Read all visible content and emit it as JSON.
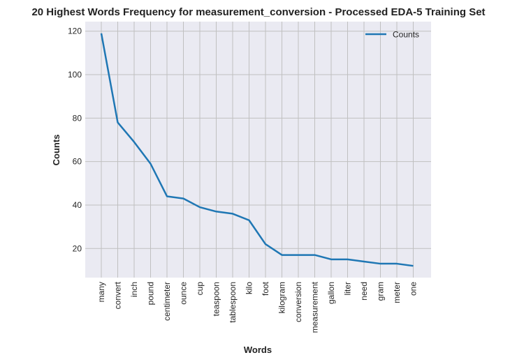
{
  "chart_data": {
    "type": "line",
    "title": "20 Highest Words Frequency for measurement_conversion - Processed EDA-5 Training Set",
    "xlabel": "Words",
    "ylabel": "Counts",
    "categories": [
      "many",
      "convert",
      "inch",
      "pound",
      "centimeter",
      "ounce",
      "cup",
      "teaspoon",
      "tablespoon",
      "kilo",
      "foot",
      "kilogram",
      "conversion",
      "measurement",
      "gallon",
      "liter",
      "need",
      "gram",
      "meter",
      "one"
    ],
    "series": [
      {
        "name": "Counts",
        "values": [
          119,
          78,
          69,
          59,
          44,
          43,
          39,
          37,
          36,
          33,
          22,
          17,
          17,
          17,
          15,
          15,
          14,
          13,
          13,
          12
        ]
      }
    ],
    "ylim": [
      6.6,
      124.4
    ],
    "yticks": [
      20,
      40,
      60,
      80,
      100,
      120
    ],
    "grid": true,
    "legend": "top-right",
    "colors": {
      "line": "#1f77b4",
      "plot_bg": "#eaeaf2",
      "grid": "#c0c0c0"
    }
  }
}
